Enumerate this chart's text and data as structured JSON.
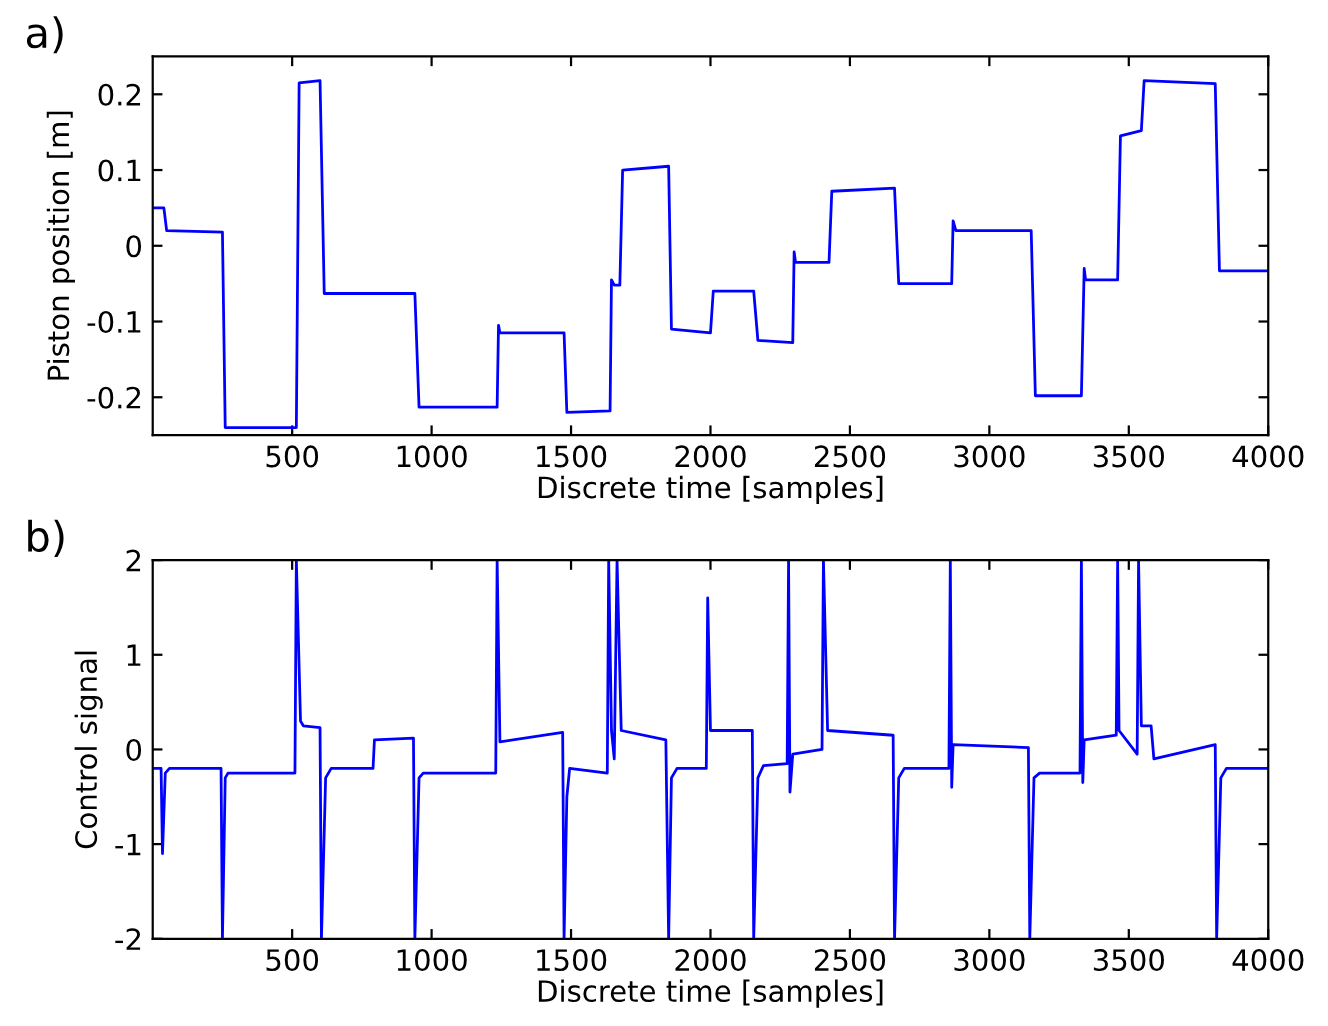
{
  "chart_data": [
    {
      "type": "line",
      "annotations": [
        "a)"
      ],
      "xlabel": "Discrete time [samples]",
      "ylabel": "Piston position [m]",
      "xlim": [
        0,
        4000
      ],
      "xticks": [
        500,
        1000,
        1500,
        2000,
        2500,
        3000,
        3500,
        4000
      ],
      "ylim": [
        -0.25,
        0.25
      ],
      "yticks": [
        -0.2,
        -0.1,
        0,
        0.1,
        0.2
      ],
      "grid": false,
      "legend": false,
      "marker": "none",
      "line_style": "solid",
      "series": [
        {
          "color": "#0000ff",
          "x": [
            0,
            40,
            50,
            250,
            260,
            515,
            525,
            600,
            615,
            940,
            955,
            1235,
            1240,
            1245,
            1475,
            1485,
            1640,
            1645,
            1655,
            1675,
            1685,
            1850,
            1860,
            2000,
            2010,
            2155,
            2170,
            2295,
            2300,
            2305,
            2425,
            2435,
            2660,
            2675,
            2865,
            2870,
            2880,
            3150,
            3165,
            3330,
            3340,
            3345,
            3460,
            3470,
            3545,
            3555,
            3810,
            3825,
            4000
          ],
          "values": [
            0.05,
            0.05,
            0.02,
            0.018,
            -0.24,
            -0.24,
            0.215,
            0.218,
            -0.063,
            -0.063,
            -0.213,
            -0.213,
            -0.105,
            -0.115,
            -0.115,
            -0.22,
            -0.218,
            -0.045,
            -0.052,
            -0.052,
            0.1,
            0.105,
            -0.11,
            -0.115,
            -0.06,
            -0.06,
            -0.125,
            -0.128,
            -0.008,
            -0.022,
            -0.022,
            0.072,
            0.076,
            -0.05,
            -0.05,
            0.033,
            0.02,
            0.02,
            -0.198,
            -0.198,
            -0.03,
            -0.045,
            -0.045,
            0.145,
            0.152,
            0.218,
            0.214,
            -0.033,
            -0.033
          ]
        }
      ]
    },
    {
      "type": "line",
      "annotations": [
        "b)"
      ],
      "xlabel": "Discrete time [samples]",
      "ylabel": "Control signal",
      "xlim": [
        0,
        4000
      ],
      "xticks": [
        500,
        1000,
        1500,
        2000,
        2500,
        3000,
        3500,
        4000
      ],
      "ylim": [
        -2,
        2
      ],
      "yticks": [
        -2,
        -1,
        0,
        1,
        2
      ],
      "grid": false,
      "legend": false,
      "marker": "none",
      "line_style": "solid",
      "series": [
        {
          "color": "#0000ff",
          "x": [
            0,
            30,
            35,
            45,
            60,
            245,
            250,
            260,
            270,
            510,
            515,
            530,
            540,
            600,
            605,
            620,
            640,
            790,
            795,
            935,
            940,
            955,
            970,
            1230,
            1235,
            1245,
            1470,
            1475,
            1485,
            1495,
            1630,
            1635,
            1645,
            1655,
            1665,
            1680,
            1840,
            1850,
            1860,
            1880,
            1985,
            1990,
            2000,
            2150,
            2155,
            2170,
            2190,
            2275,
            2280,
            2285,
            2295,
            2400,
            2405,
            2420,
            2655,
            2660,
            2675,
            2695,
            2855,
            2860,
            2865,
            2870,
            3140,
            3145,
            3160,
            3180,
            3325,
            3330,
            3335,
            3340,
            3455,
            3460,
            3465,
            3530,
            3535,
            3545,
            3580,
            3590,
            3810,
            3815,
            3830,
            3850,
            4000
          ],
          "values": [
            -0.2,
            -0.2,
            -1.1,
            -0.25,
            -0.2,
            -0.2,
            -2,
            -0.3,
            -0.25,
            -0.25,
            2,
            0.3,
            0.25,
            0.23,
            -2,
            -0.3,
            -0.2,
            -0.2,
            0.1,
            0.12,
            -2,
            -0.3,
            -0.25,
            -0.25,
            2,
            0.08,
            0.18,
            -2,
            -0.5,
            -0.2,
            -0.25,
            2,
            0.2,
            -0.1,
            2,
            0.2,
            0.1,
            -2,
            -0.3,
            -0.2,
            -0.2,
            1.6,
            0.2,
            0.2,
            -2,
            -0.3,
            -0.17,
            -0.15,
            2,
            -0.45,
            -0.05,
            0,
            2,
            0.2,
            0.15,
            -2,
            -0.3,
            -0.2,
            -0.2,
            2,
            -0.4,
            0.05,
            0.02,
            -2,
            -0.3,
            -0.25,
            -0.25,
            2,
            -0.35,
            0.1,
            0.15,
            2,
            0.2,
            -0.05,
            2,
            0.25,
            0.25,
            -0.1,
            0.05,
            -2,
            -0.3,
            -0.2,
            -0.2
          ]
        }
      ]
    }
  ]
}
